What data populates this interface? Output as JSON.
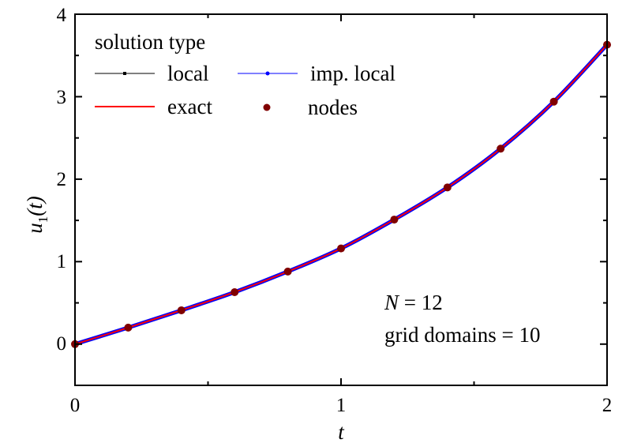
{
  "chart_data": {
    "type": "line",
    "title": "",
    "xlabel": "t",
    "ylabel": "u_1(t)",
    "ylabel_parts": {
      "main": "u",
      "subscript": "1",
      "arg": "(t)"
    },
    "xlim": [
      0,
      2
    ],
    "ylim": [
      -0.5,
      4
    ],
    "x_ticks": [
      "0",
      "1",
      "2"
    ],
    "y_ticks": [
      "0",
      "1",
      "2",
      "3",
      "4"
    ],
    "grid": false,
    "legend": {
      "title": "solution type",
      "position": "upper left",
      "entries": [
        {
          "label": "local",
          "color": "#000000",
          "style": "line+square-marker"
        },
        {
          "label": "imp. local",
          "color": "#0000ff",
          "style": "line+dot-marker"
        },
        {
          "label": "exact",
          "color": "#ff0000",
          "style": "line"
        },
        {
          "label": "nodes",
          "color": "#800000",
          "style": "circle-marker"
        }
      ]
    },
    "annotations": [
      "N = 12",
      "grid domains = 10"
    ],
    "annotation_parts": {
      "n_symbol": "N",
      "n_value": " = 12",
      "grid": "grid domains = 10"
    },
    "x": [
      0.0,
      0.2,
      0.4,
      0.6,
      0.8,
      1.0,
      1.2,
      1.4,
      1.6,
      1.8,
      2.0
    ],
    "series": [
      {
        "name": "local",
        "color": "#000000",
        "values": [
          0.0,
          0.2,
          0.41,
          0.63,
          0.88,
          1.16,
          1.51,
          1.9,
          2.37,
          2.94,
          3.63
        ]
      },
      {
        "name": "imp. local",
        "color": "#0000ff",
        "values": [
          0.0,
          0.2,
          0.41,
          0.63,
          0.88,
          1.16,
          1.51,
          1.9,
          2.37,
          2.94,
          3.63
        ]
      },
      {
        "name": "exact",
        "color": "#ff0000",
        "values": [
          0.0,
          0.2,
          0.41,
          0.63,
          0.88,
          1.16,
          1.51,
          1.9,
          2.37,
          2.94,
          3.63
        ]
      },
      {
        "name": "nodes",
        "color": "#800000",
        "values": [
          0.0,
          0.2,
          0.41,
          0.63,
          0.88,
          1.16,
          1.51,
          1.9,
          2.37,
          2.94,
          3.63
        ]
      }
    ]
  }
}
